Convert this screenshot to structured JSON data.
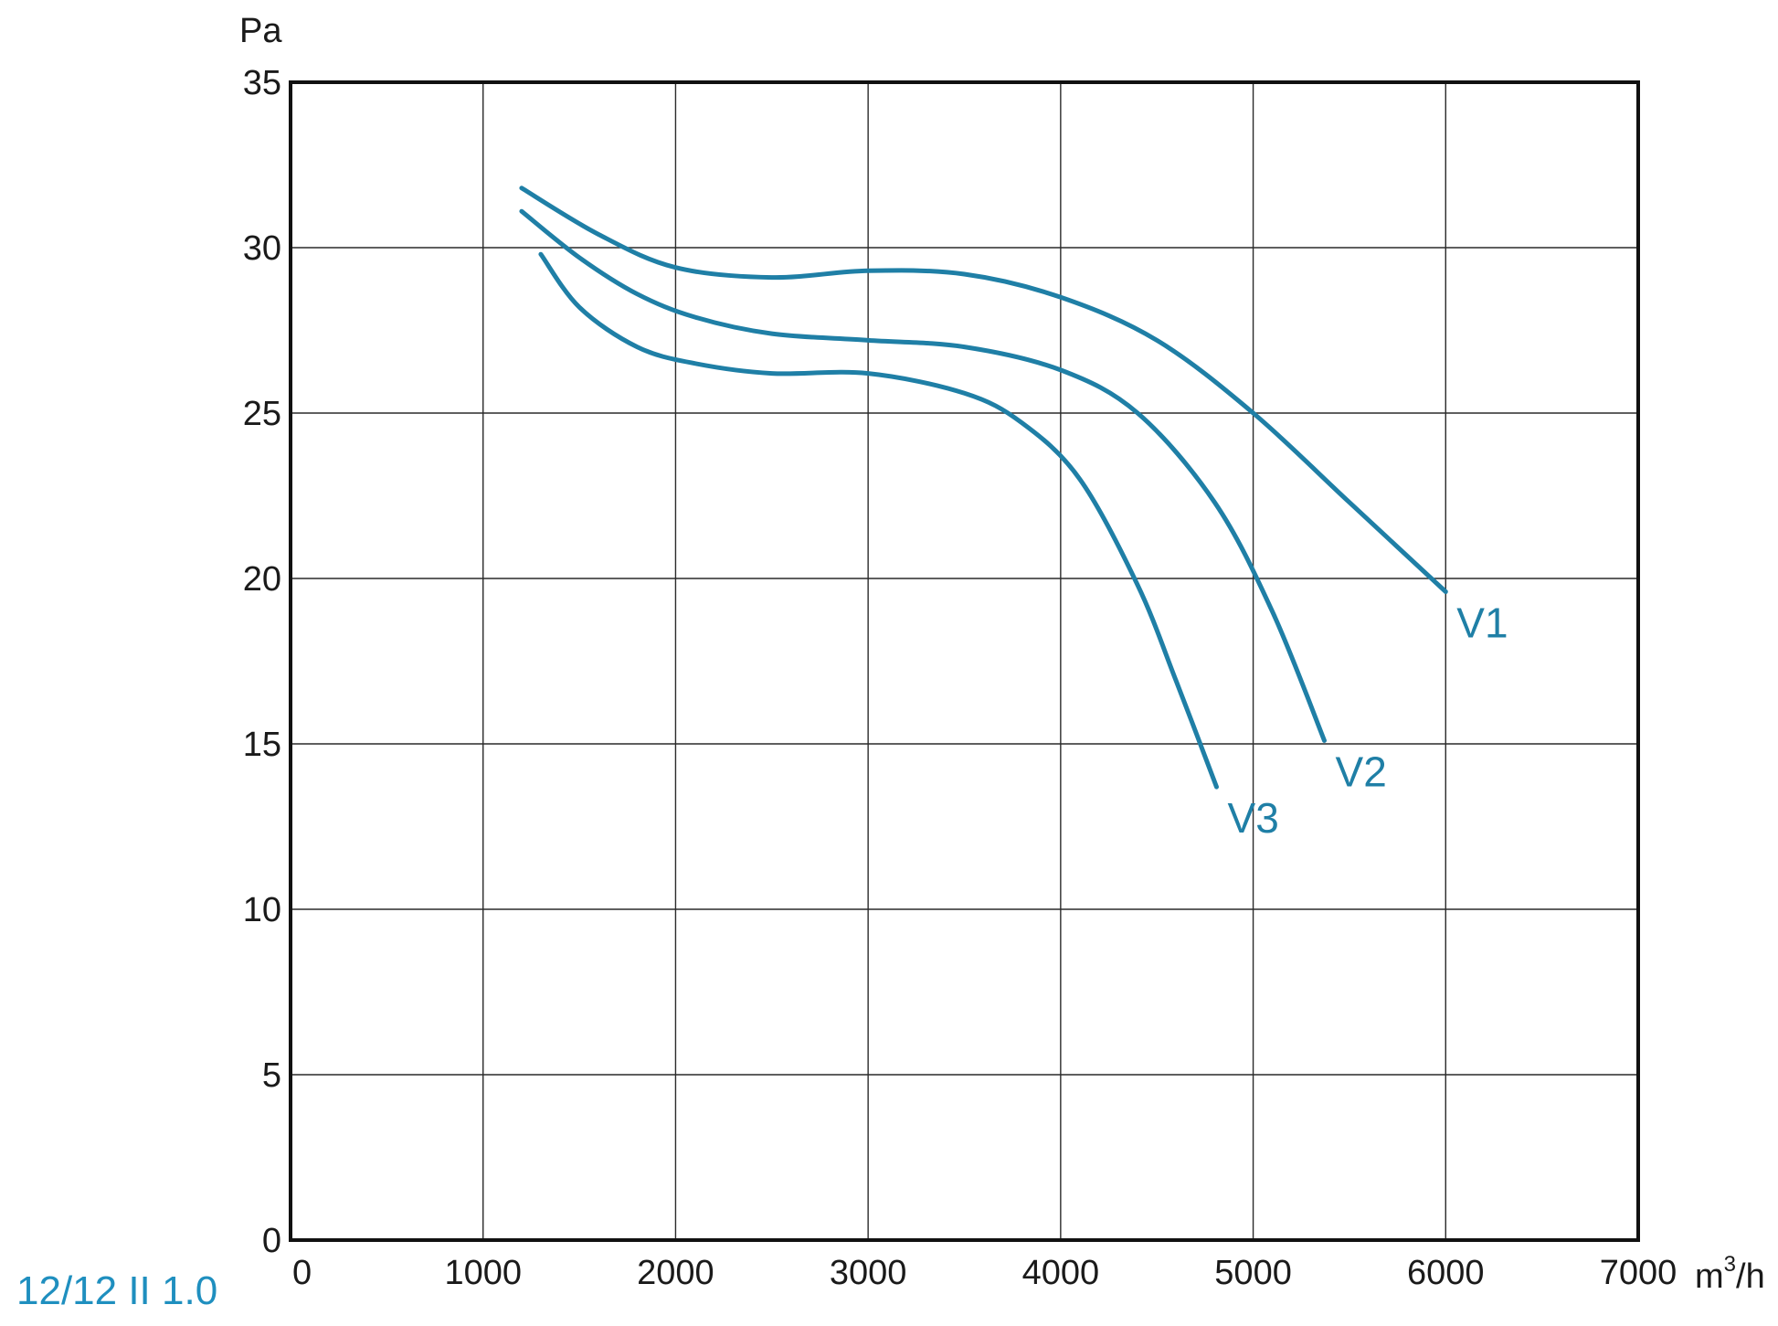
{
  "chart_data": {
    "type": "line",
    "ylabel": "Pa",
    "xlabel_base": "m",
    "xlabel_sup": "3",
    "xlabel_tail": "/h",
    "xlim": [
      0,
      7000
    ],
    "ylim": [
      0,
      35
    ],
    "xticks": [
      "0",
      "1000",
      "2000",
      "3000",
      "4000",
      "5000",
      "6000",
      "7000"
    ],
    "yticks": [
      "0",
      "5",
      "10",
      "15",
      "20",
      "25",
      "30",
      "35"
    ],
    "xtick_values": [
      0,
      1000,
      2000,
      3000,
      4000,
      5000,
      6000,
      7000
    ],
    "ytick_values": [
      0,
      5,
      10,
      15,
      20,
      25,
      30,
      35
    ],
    "grid": true,
    "series": [
      {
        "name": "V1",
        "x": [
          1200,
          1600,
          2000,
          2500,
          3000,
          3500,
          4000,
          4500,
          5000,
          5500,
          6000
        ],
        "y": [
          31.8,
          30.4,
          29.4,
          29.1,
          29.3,
          29.2,
          28.5,
          27.2,
          25.0,
          22.3,
          19.6
        ]
      },
      {
        "name": "V2",
        "x": [
          1200,
          1500,
          1800,
          2100,
          2500,
          3000,
          3500,
          4000,
          4400,
          4800,
          5100,
          5370
        ],
        "y": [
          31.1,
          29.7,
          28.6,
          27.9,
          27.4,
          27.2,
          27.0,
          26.3,
          25.0,
          22.3,
          19.0,
          15.1
        ]
      },
      {
        "name": "V3",
        "x": [
          1300,
          1500,
          1800,
          2100,
          2500,
          3000,
          3500,
          3800,
          4100,
          4400,
          4600,
          4810
        ],
        "y": [
          29.8,
          28.2,
          27.0,
          26.5,
          26.2,
          26.2,
          25.6,
          24.7,
          23.0,
          19.8,
          16.9,
          13.7
        ]
      }
    ]
  },
  "caption": "12/12 II 1.0",
  "colors": {
    "series": "#1f7fa6",
    "caption": "#1f8fbf",
    "grid": "#2a2a2a"
  }
}
